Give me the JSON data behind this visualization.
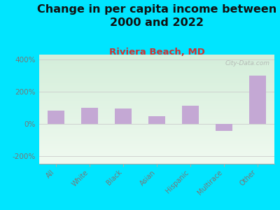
{
  "title": "Change in per capita income between\n2000 and 2022",
  "subtitle": "Riviera Beach, MD",
  "categories": [
    "All",
    "White",
    "Black",
    "Asian",
    "Hispanic",
    "Multirace",
    "Other"
  ],
  "values": [
    80,
    100,
    95,
    45,
    110,
    -45,
    300
  ],
  "bar_color": "#c4a8d4",
  "background_outer": "#00e5ff",
  "background_inner_top": "#d4eeda",
  "background_inner_bottom": "#f0faf0",
  "title_fontsize": 11.5,
  "subtitle_fontsize": 9.5,
  "subtitle_color": "#cc3333",
  "ylabel_ticks": [
    "-200%",
    "0%",
    "200%",
    "400%"
  ],
  "yticks": [
    -200,
    0,
    200,
    400
  ],
  "ylim": [
    -250,
    430
  ],
  "watermark": "City-Data.com",
  "title_color": "#111111",
  "tick_color": "#777777",
  "axis_color": "#aaaaaa"
}
